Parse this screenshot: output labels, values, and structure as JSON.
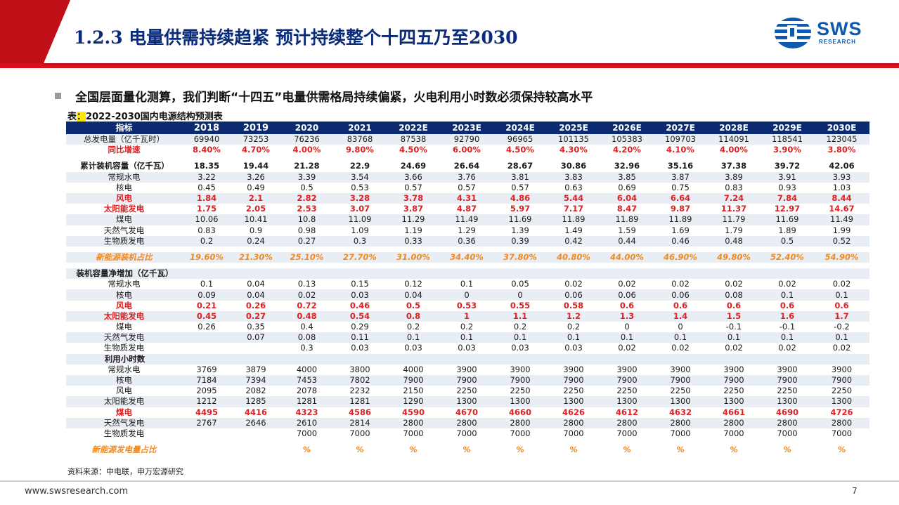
{
  "header": {
    "title": "1.2.3 电量供需持续趋紧 预计持续整个十四五乃至2030",
    "logo_text": "SWS",
    "logo_sub": "RESEARCH",
    "accent_color": "#d7121c",
    "brand_color": "#0d5ab0"
  },
  "bullet": "全国层面量化测算，我们判断“十四五”电量供需格局持续偏紧，火电利用小时数必须保持较高水平",
  "caption": {
    "prefix": "表",
    "highlight": "：",
    "text": "2022-2030国内电源结构预测表"
  },
  "table": {
    "headers": [
      "指标",
      "2018",
      "2019",
      "2020",
      "2021",
      "2022E",
      "2023E",
      "2024E",
      "2025E",
      "2026E",
      "2027E",
      "2028E",
      "2029E",
      "2030E"
    ],
    "rows": [
      {
        "label": "总发电量（亿千瓦时）",
        "style": "",
        "values": [
          "69940",
          "73253",
          "76236",
          "83768",
          "87538",
          "92790",
          "96965",
          "101135",
          "105383",
          "109703",
          "114091",
          "118541",
          "123045"
        ]
      },
      {
        "label": "同比增速",
        "style": "red",
        "values": [
          "8.40%",
          "4.70%",
          "4.00%",
          "9.80%",
          "4.50%",
          "6.00%",
          "4.50%",
          "4.30%",
          "4.20%",
          "4.10%",
          "4.00%",
          "3.90%",
          "3.80%"
        ]
      },
      {
        "label": "",
        "style": "spacer",
        "values": []
      },
      {
        "label": "累计装机容量（亿千瓦）",
        "style": "bold-left",
        "values": [
          "18.35",
          "19.44",
          "21.28",
          "22.9",
          "24.69",
          "26.64",
          "28.67",
          "30.86",
          "32.96",
          "35.16",
          "37.38",
          "39.72",
          "42.06"
        ]
      },
      {
        "label": "常规水电",
        "style": "",
        "values": [
          "3.22",
          "3.26",
          "3.39",
          "3.54",
          "3.66",
          "3.76",
          "3.81",
          "3.83",
          "3.85",
          "3.87",
          "3.89",
          "3.91",
          "3.93"
        ]
      },
      {
        "label": "核电",
        "style": "",
        "values": [
          "0.45",
          "0.49",
          "0.5",
          "0.53",
          "0.57",
          "0.57",
          "0.57",
          "0.63",
          "0.69",
          "0.75",
          "0.83",
          "0.93",
          "1.03"
        ]
      },
      {
        "label": "风电",
        "style": "red",
        "values": [
          "1.84",
          "2.1",
          "2.82",
          "3.28",
          "3.78",
          "4.31",
          "4.86",
          "5.44",
          "6.04",
          "6.64",
          "7.24",
          "7.84",
          "8.44"
        ]
      },
      {
        "label": "太阳能发电",
        "style": "red",
        "values": [
          "1.75",
          "2.05",
          "2.53",
          "3.07",
          "3.87",
          "4.87",
          "5.97",
          "7.17",
          "8.47",
          "9.87",
          "11.37",
          "12.97",
          "14.67"
        ]
      },
      {
        "label": "煤电",
        "style": "",
        "values": [
          "10.06",
          "10.41",
          "10.8",
          "11.09",
          "11.29",
          "11.49",
          "11.69",
          "11.89",
          "11.89",
          "11.89",
          "11.79",
          "11.69",
          "11.49"
        ]
      },
      {
        "label": "天然气发电",
        "style": "",
        "values": [
          "0.83",
          "0.9",
          "0.98",
          "1.09",
          "1.19",
          "1.29",
          "1.39",
          "1.49",
          "1.59",
          "1.69",
          "1.79",
          "1.89",
          "1.99"
        ]
      },
      {
        "label": "生物质发电",
        "style": "",
        "values": [
          "0.2",
          "0.24",
          "0.27",
          "0.3",
          "0.33",
          "0.36",
          "0.39",
          "0.42",
          "0.44",
          "0.46",
          "0.48",
          "0.5",
          "0.52"
        ]
      },
      {
        "label": "",
        "style": "spacer",
        "values": []
      },
      {
        "label": "新能源装机占比",
        "style": "orange",
        "values": [
          "19.60%",
          "21.30%",
          "25.10%",
          "27.70%",
          "31.00%",
          "34.40%",
          "37.80%",
          "40.80%",
          "44.00%",
          "46.90%",
          "49.80%",
          "52.40%",
          "54.90%"
        ]
      },
      {
        "label": "",
        "style": "spacer",
        "values": []
      },
      {
        "label": "装机容量净增加（亿千瓦）",
        "style": "bold-left",
        "values": [
          "",
          "",
          "",
          "",
          "",
          "",
          "",
          "",
          "",
          "",
          "",
          "",
          ""
        ]
      },
      {
        "label": "常规水电",
        "style": "",
        "values": [
          "0.1",
          "0.04",
          "0.13",
          "0.15",
          "0.12",
          "0.1",
          "0.05",
          "0.02",
          "0.02",
          "0.02",
          "0.02",
          "0.02",
          "0.02"
        ]
      },
      {
        "label": "核电",
        "style": "",
        "values": [
          "0.09",
          "0.04",
          "0.02",
          "0.03",
          "0.04",
          "0",
          "0",
          "0.06",
          "0.06",
          "0.06",
          "0.08",
          "0.1",
          "0.1"
        ]
      },
      {
        "label": "风电",
        "style": "red",
        "values": [
          "0.21",
          "0.26",
          "0.72",
          "0.46",
          "0.5",
          "0.53",
          "0.55",
          "0.58",
          "0.6",
          "0.6",
          "0.6",
          "0.6",
          "0.6"
        ]
      },
      {
        "label": "太阳能发电",
        "style": "red",
        "values": [
          "0.45",
          "0.27",
          "0.48",
          "0.54",
          "0.8",
          "1",
          "1.1",
          "1.2",
          "1.3",
          "1.4",
          "1.5",
          "1.6",
          "1.7"
        ]
      },
      {
        "label": "煤电",
        "style": "",
        "values": [
          "0.26",
          "0.35",
          "0.4",
          "0.29",
          "0.2",
          "0.2",
          "0.2",
          "0.2",
          "0",
          "0",
          "-0.1",
          "-0.1",
          "-0.2"
        ]
      },
      {
        "label": "天然气发电",
        "style": "",
        "values": [
          "",
          "0.07",
          "0.08",
          "0.11",
          "0.1",
          "0.1",
          "0.1",
          "0.1",
          "0.1",
          "0.1",
          "0.1",
          "0.1",
          "0.1"
        ]
      },
      {
        "label": "生物质发电",
        "style": "",
        "values": [
          "",
          "",
          "0.3",
          "0.03",
          "0.03",
          "0.03",
          "0.03",
          "0.03",
          "0.02",
          "0.02",
          "0.02",
          "0.02",
          "0.02"
        ]
      },
      {
        "label": "利用小时数",
        "style": "bold-left",
        "values": [
          "",
          "",
          "",
          "",
          "",
          "",
          "",
          "",
          "",
          "",
          "",
          "",
          ""
        ]
      },
      {
        "label": "常规水电",
        "style": "",
        "values": [
          "3769",
          "3879",
          "4000",
          "3800",
          "4000",
          "3900",
          "3900",
          "3900",
          "3900",
          "3900",
          "3900",
          "3900",
          "3900"
        ]
      },
      {
        "label": "核电",
        "style": "",
        "values": [
          "7184",
          "7394",
          "7453",
          "7802",
          "7900",
          "7900",
          "7900",
          "7900",
          "7900",
          "7900",
          "7900",
          "7900",
          "7900"
        ]
      },
      {
        "label": "风电",
        "style": "",
        "values": [
          "2095",
          "2082",
          "2078",
          "2232",
          "2150",
          "2250",
          "2250",
          "2250",
          "2250",
          "2250",
          "2250",
          "2250",
          "2250"
        ]
      },
      {
        "label": "太阳能发电",
        "style": "",
        "values": [
          "1212",
          "1285",
          "1281",
          "1281",
          "1290",
          "1300",
          "1300",
          "1300",
          "1300",
          "1300",
          "1300",
          "1300",
          "1300"
        ]
      },
      {
        "label": "煤电",
        "style": "red",
        "values": [
          "4495",
          "4416",
          "4323",
          "4586",
          "4590",
          "4670",
          "4660",
          "4626",
          "4612",
          "4632",
          "4661",
          "4690",
          "4726"
        ]
      },
      {
        "label": "天然气发电",
        "style": "",
        "values": [
          "2767",
          "2646",
          "2610",
          "2814",
          "2800",
          "2800",
          "2800",
          "2800",
          "2800",
          "2800",
          "2800",
          "2800",
          "2800"
        ]
      },
      {
        "label": "生物质发电",
        "style": "",
        "values": [
          "",
          "",
          "7000",
          "7000",
          "7000",
          "7000",
          "7000",
          "7000",
          "7000",
          "7000",
          "7000",
          "7000",
          "7000"
        ]
      },
      {
        "label": "",
        "style": "spacer",
        "values": []
      },
      {
        "label": "新能源发电量占比",
        "style": "orange",
        "values": [
          "",
          "",
          "%",
          "%",
          "%",
          "%",
          "%",
          "%",
          "%",
          "%",
          "%",
          "%",
          "%"
        ]
      }
    ]
  },
  "source": "资料来源：中电联，申万宏源研究",
  "footer": {
    "url": "www.swsresearch.com",
    "page": "7"
  }
}
